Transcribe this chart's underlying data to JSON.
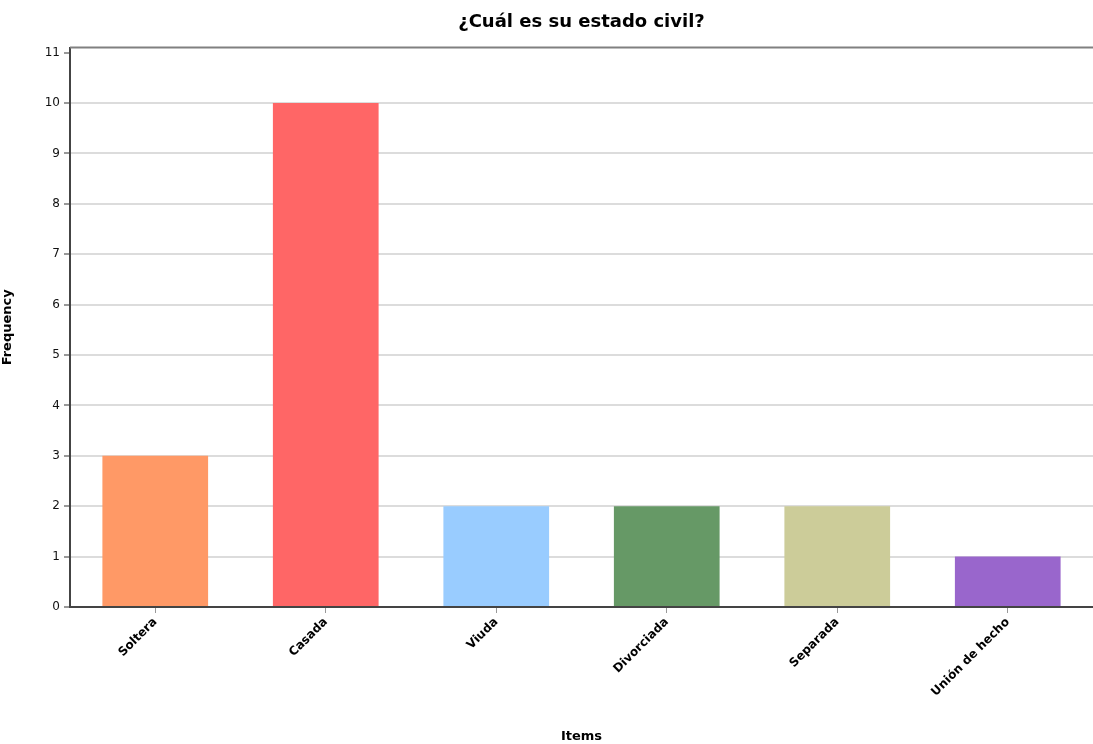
{
  "chart_data": {
    "type": "bar",
    "title": "¿Cuál es su estado civil?",
    "xlabel": "Items",
    "ylabel": "Frequency",
    "categories": [
      "Soltera",
      "Casada",
      "Viuda",
      "Divorciada",
      "Separada",
      "Unión de hecho"
    ],
    "values": [
      3,
      10,
      2,
      2,
      2,
      1
    ],
    "colors": [
      "#ff9966",
      "#ff6666",
      "#99ccff",
      "#669966",
      "#cccc99",
      "#9966cc"
    ],
    "ylim": [
      0,
      11.1
    ],
    "yticks": [
      0,
      1,
      2,
      3,
      4,
      5,
      6,
      7,
      8,
      9,
      10,
      11
    ],
    "grid": "y"
  }
}
